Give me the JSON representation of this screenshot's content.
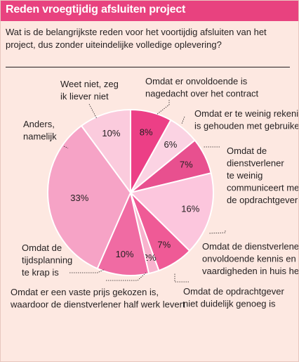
{
  "title": "Reden vroegtijdig afsluiten project",
  "question": "Wat is de belangrijkste reden voor het voortijdig afsluiten van het project, dus zonder uiteindelijke volledige oplevering?",
  "colors": {
    "header": "#e8427f",
    "background": "#fde8e1"
  },
  "chart_data": {
    "type": "pie",
    "title": "Reden vroegtijdig afsluiten project",
    "unit": "%",
    "categories": [
      "Omdat er onvoldoende is nagedacht over het contract",
      "Omdat er te weinig rekening is gehouden met gebruikers",
      "Omdat de dienstverlener te weinig communiceert met de opdrachtgever",
      "Omdat de dienstverlener onvoldoende kennis en vaardigheden in huis heeft",
      "Omdat de opdrachtgever niet duidelijk genoeg is",
      "Omdat er een vaste prijs gekozen is, waardoor de dienstverlener half werk levert",
      "Omdat de tijdsplanning te krap is",
      "Anders, namelijk",
      "Weet niet, zeg ik liever niet"
    ],
    "values": [
      8,
      6,
      7,
      16,
      7,
      2,
      10,
      33,
      10
    ],
    "value_labels": [
      "8%",
      "6%",
      "7%",
      "16%",
      "7%",
      "2%",
      "10%",
      "33%",
      "10%"
    ],
    "slice_colors": [
      "#ec3f86",
      "#fbd3e3",
      "#e8508f",
      "#fcc6dd",
      "#ef5a96",
      "#f8b2cd",
      "#f06ba3",
      "#f6a3c6",
      "#fbcbdd"
    ],
    "callout_labels": [
      [
        "Omdat er onvoldoende is",
        "nagedacht over het contract"
      ],
      [
        "Omdat er te weinig rekening",
        "is gehouden met gebruikers"
      ],
      [
        "Omdat de",
        "dienstverlener",
        "te weinig",
        "communiceert met",
        "de opdrachtgever"
      ],
      [
        "Omdat de dienstverlener",
        "onvoldoende kennis en",
        "vaardigheden in huis heeft"
      ],
      [
        "Omdat de opdrachtgever",
        "niet duidelijk genoeg is"
      ],
      [
        "Omdat er een vaste prijs gekozen is,",
        "waardoor de dienstverlener half werk levert"
      ],
      [
        "Omdat de",
        "tijdsplanning",
        "te krap is"
      ],
      [
        "Anders,",
        "namelijk"
      ],
      [
        "Weet niet, zeg",
        "ik liever niet"
      ]
    ]
  }
}
